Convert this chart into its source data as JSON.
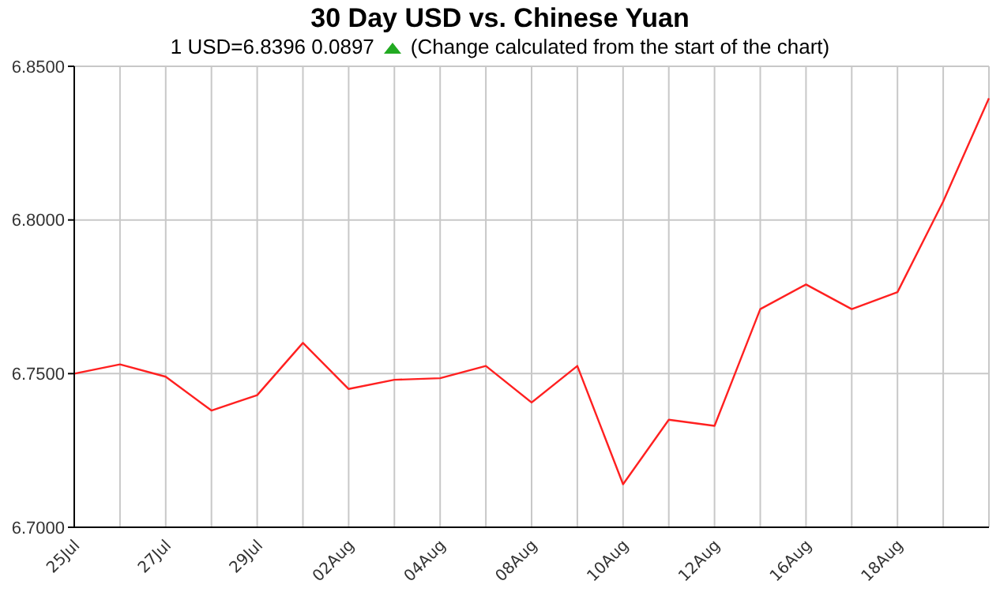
{
  "chart_data": {
    "type": "line",
    "title": "30 Day USD vs. Chinese Yuan",
    "subtitle": "1 USD=6.8396  0.0897",
    "annotations": [
      "(Change calculated from the start of the chart)"
    ],
    "categories": [
      "25Jul",
      null,
      "27Jul",
      null,
      "29Jul",
      null,
      "02Aug",
      null,
      "04Aug",
      null,
      "08Aug",
      null,
      "10Aug",
      null,
      "12Aug",
      null,
      "16Aug",
      null,
      "18Aug",
      null,
      null
    ],
    "series": [
      {
        "color": "#ff2020",
        "values": [
          6.75,
          6.753,
          6.749,
          6.738,
          6.743,
          6.76,
          6.745,
          6.748,
          6.7485,
          6.7525,
          6.7406,
          6.7525,
          6.714,
          6.735,
          6.733,
          6.771,
          6.779,
          6.771,
          6.7765,
          6.806,
          6.8396
        ]
      }
    ],
    "ylim": [
      6.7,
      6.85
    ],
    "yticks": [
      {
        "value": 6.7,
        "label": "6.7000"
      },
      {
        "value": 6.75,
        "label": "6.7500"
      },
      {
        "value": 6.8,
        "label": "6.8000"
      },
      {
        "value": 6.85,
        "label": "6.8500"
      }
    ],
    "grid": true,
    "legend": false,
    "marker": "none",
    "line_style": "solid"
  }
}
